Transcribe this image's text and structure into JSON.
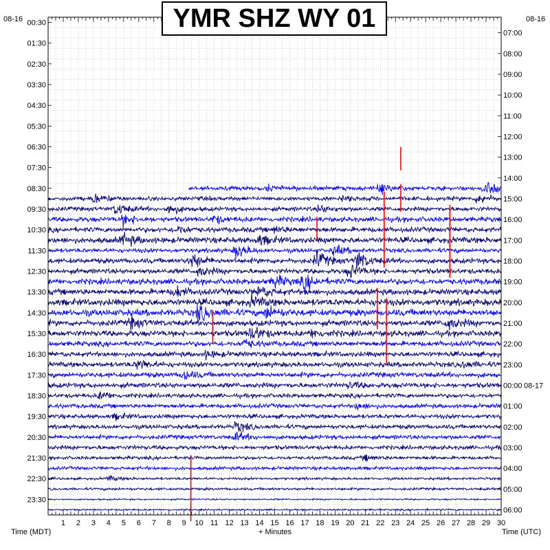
{
  "chart_data": {
    "type": "line",
    "title": "YMR SHZ WY 01",
    "xlabel": "+ Minutes",
    "left_axis_label": "Time (MDT)",
    "right_axis_label": "Time (UTC)",
    "left_date": "08-16",
    "right_date": "08-16",
    "right_date_change": "08-17",
    "x_ticks": [
      1,
      2,
      3,
      4,
      5,
      6,
      7,
      8,
      9,
      10,
      11,
      12,
      13,
      14,
      15,
      16,
      17,
      18,
      19,
      20,
      21,
      22,
      23,
      24,
      25,
      26,
      27,
      28,
      29,
      30
    ],
    "xlim": [
      0,
      30
    ],
    "left_ticks": [
      "00:30",
      "01:30",
      "02:30",
      "03:30",
      "04:30",
      "05:30",
      "06:30",
      "07:30",
      "08:30",
      "09:30",
      "10:30",
      "11:30",
      "12:30",
      "13:30",
      "14:30",
      "15:30",
      "16:30",
      "17:30",
      "18:30",
      "19:30",
      "20:30",
      "21:30",
      "22:30",
      "23:30"
    ],
    "right_ticks": [
      "07:00",
      "08:00",
      "09:00",
      "10:00",
      "11:00",
      "12:00",
      "13:00",
      "14:00",
      "15:00",
      "16:00",
      "17:00",
      "18:00",
      "19:00",
      "20:00",
      "21:00",
      "22:00",
      "23:00",
      "00:00",
      "01:00",
      "02:00",
      "03:00",
      "04:00",
      "05:00",
      "06:00"
    ],
    "trace_colors": [
      "#0000ff",
      "#000080",
      "#00006a"
    ],
    "pick_color": "#ff0000",
    "trace_start_row": 16,
    "data_end_row": 47,
    "data_end_minute": 30,
    "row_amplitude": [
      5,
      5,
      5,
      6,
      6,
      7,
      5,
      6,
      6,
      7,
      7,
      8,
      8,
      7,
      7,
      6,
      6,
      6,
      6,
      6,
      5,
      5,
      5,
      5,
      5,
      5,
      4,
      4,
      3,
      3,
      2,
      2
    ],
    "events": [
      {
        "row": 16,
        "minute": 6.2,
        "amp": 6
      },
      {
        "row": 16,
        "minute": 14.5,
        "amp": 5
      },
      {
        "row": 16,
        "minute": 22.0,
        "amp": 10
      },
      {
        "row": 16,
        "minute": 29.0,
        "amp": 18
      },
      {
        "row": 17,
        "minute": 3.0,
        "amp": 10
      },
      {
        "row": 17,
        "minute": 19.5,
        "amp": 6
      },
      {
        "row": 17,
        "minute": 28.5,
        "amp": 12
      },
      {
        "row": 18,
        "minute": 4.5,
        "amp": 14
      },
      {
        "row": 18,
        "minute": 8.0,
        "amp": 12
      },
      {
        "row": 18,
        "minute": 18.0,
        "amp": 9
      },
      {
        "row": 19,
        "minute": 5.0,
        "amp": 12
      },
      {
        "row": 19,
        "minute": 11.0,
        "amp": 8
      },
      {
        "row": 20,
        "minute": 8.5,
        "amp": 10
      },
      {
        "row": 20,
        "minute": 15.0,
        "amp": 7
      },
      {
        "row": 21,
        "minute": 5.0,
        "amp": 14
      },
      {
        "row": 21,
        "minute": 14.0,
        "amp": 10
      },
      {
        "row": 22,
        "minute": 12.5,
        "amp": 18
      },
      {
        "row": 22,
        "minute": 19.0,
        "amp": 12
      },
      {
        "row": 23,
        "minute": 9.5,
        "amp": 18
      },
      {
        "row": 23,
        "minute": 17.8,
        "amp": 20
      },
      {
        "row": 23,
        "minute": 20.5,
        "amp": 22
      },
      {
        "row": 24,
        "minute": 20.0,
        "amp": 16
      },
      {
        "row": 24,
        "minute": 10.0,
        "amp": 12
      },
      {
        "row": 25,
        "minute": 15.0,
        "amp": 14
      },
      {
        "row": 25,
        "minute": 17.0,
        "amp": 18
      },
      {
        "row": 26,
        "minute": 8.5,
        "amp": 12
      },
      {
        "row": 26,
        "minute": 14.0,
        "amp": 14
      },
      {
        "row": 27,
        "minute": 13.5,
        "amp": 12
      },
      {
        "row": 28,
        "minute": 10.0,
        "amp": 18
      },
      {
        "row": 28,
        "minute": 14.5,
        "amp": 14
      },
      {
        "row": 29,
        "minute": 5.5,
        "amp": 12
      },
      {
        "row": 29,
        "minute": 26.5,
        "amp": 14
      },
      {
        "row": 30,
        "minute": 13.5,
        "amp": 18
      },
      {
        "row": 30,
        "minute": 17.5,
        "amp": 9
      },
      {
        "row": 31,
        "minute": 13.0,
        "amp": 10
      },
      {
        "row": 32,
        "minute": 10.5,
        "amp": 8
      },
      {
        "row": 33,
        "minute": 6.0,
        "amp": 12
      },
      {
        "row": 33,
        "minute": 27.5,
        "amp": 8
      },
      {
        "row": 34,
        "minute": 9.0,
        "amp": 10
      },
      {
        "row": 35,
        "minute": 20.0,
        "amp": 7
      },
      {
        "row": 36,
        "minute": 3.5,
        "amp": 10
      },
      {
        "row": 37,
        "minute": 20.5,
        "amp": 8
      },
      {
        "row": 38,
        "minute": 4.5,
        "amp": 6
      },
      {
        "row": 39,
        "minute": 12.5,
        "amp": 12
      },
      {
        "row": 40,
        "minute": 12.5,
        "amp": 10
      },
      {
        "row": 42,
        "minute": 21.0,
        "amp": 6
      },
      {
        "row": 44,
        "minute": 4.0,
        "amp": 6
      }
    ],
    "picks": [
      {
        "row": 14,
        "minute": 23.35,
        "up": 30,
        "down": 4
      },
      {
        "row": 16,
        "minute": 23.35,
        "up": 6,
        "down": 34
      },
      {
        "row": 17,
        "minute": 22.25,
        "up": 10,
        "down": 100
      },
      {
        "row": 18,
        "minute": 26.6,
        "up": 6,
        "down": 100
      },
      {
        "row": 19,
        "minute": 17.8,
        "up": 4,
        "down": 30
      },
      {
        "row": 26,
        "minute": 21.8,
        "up": 6,
        "down": 54
      },
      {
        "row": 27,
        "minute": 22.4,
        "up": 6,
        "down": 90
      },
      {
        "row": 28,
        "minute": 10.9,
        "up": 4,
        "down": 30
      },
      {
        "row": 29,
        "minute": 10.9,
        "up": 4,
        "down": 30
      },
      {
        "row": 42,
        "minute": 9.45,
        "up": 4,
        "down": 92
      }
    ]
  }
}
